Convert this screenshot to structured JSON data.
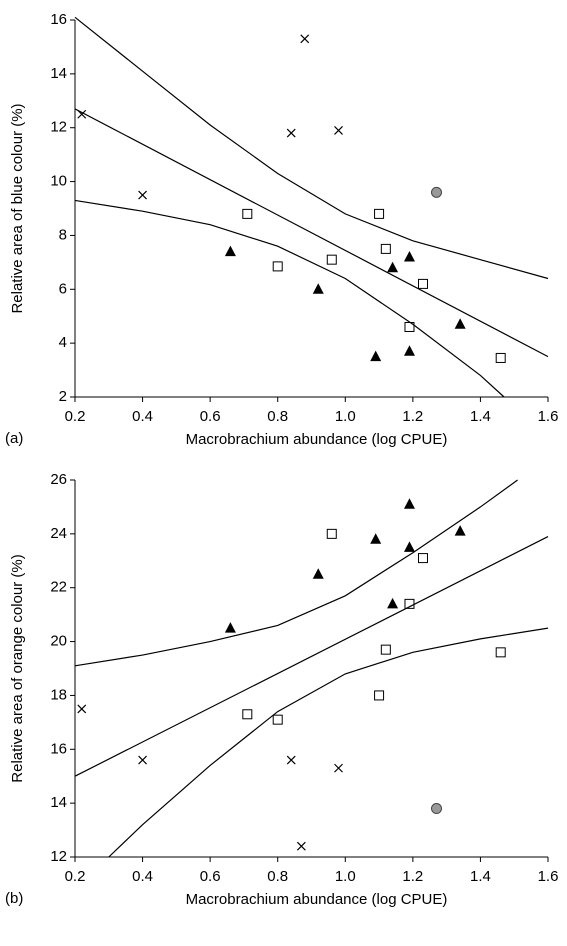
{
  "chart_data": [
    {
      "type": "scatter",
      "panel_label": "(a)",
      "x_label": "Macrobrachium abundance (log CPUE)",
      "y_label": "Relative area of blue colour (%)",
      "xlim": [
        0.2,
        1.6
      ],
      "xticks": [
        0.2,
        0.4,
        0.6,
        0.8,
        {
          "value": 1,
          "label": "1.0"
        },
        1.2,
        1.4,
        1.6
      ],
      "ylim": [
        2,
        16
      ],
      "yticks": [
        2,
        4,
        6,
        8,
        10,
        12,
        14,
        16
      ],
      "series": [
        {
          "marker": "x",
          "color": "#000000",
          "x": [
            0.22,
            0.4,
            0.84,
            0.88,
            0.98
          ],
          "values": [
            12.5,
            9.5,
            11.8,
            15.3,
            11.9
          ]
        },
        {
          "marker": "square",
          "color": "#000000",
          "x": [
            0.71,
            0.8,
            0.96,
            1.1,
            1.12,
            1.19,
            1.23,
            1.46
          ],
          "values": [
            8.8,
            6.85,
            7.1,
            8.8,
            7.5,
            4.6,
            6.2,
            3.45
          ]
        },
        {
          "marker": "triangle",
          "color": "#000000",
          "x": [
            0.66,
            0.92,
            1.09,
            1.14,
            1.19,
            1.19,
            1.34
          ],
          "values": [
            7.4,
            6.0,
            3.5,
            6.8,
            3.7,
            7.2,
            4.7
          ]
        },
        {
          "marker": "circle",
          "color": "#999999",
          "x": [
            1.27
          ],
          "values": [
            9.6
          ]
        },
        {
          "marker": "line",
          "color": "#000000",
          "x": [
            0.2,
            1.6
          ],
          "values": [
            12.7,
            3.5
          ]
        },
        {
          "marker": "line",
          "color": "#000000",
          "x": [
            0.2,
            0.4,
            0.6,
            0.8,
            1.0,
            1.2,
            1.4,
            1.6
          ],
          "values": [
            16.1,
            14.1,
            12.1,
            10.3,
            8.8,
            7.8,
            7.1,
            6.4
          ]
        },
        {
          "marker": "line",
          "color": "#000000",
          "x": [
            0.2,
            0.4,
            0.6,
            0.8,
            1.0,
            1.2,
            1.4,
            1.47
          ],
          "values": [
            9.3,
            8.9,
            8.4,
            7.6,
            6.4,
            4.7,
            2.8,
            2.0
          ]
        }
      ]
    },
    {
      "type": "scatter",
      "panel_label": "(b)",
      "x_label": "Macrobrachium abundance (log CPUE)",
      "y_label": "Relative area of orange colour (%)",
      "xlim": [
        0.2,
        1.6
      ],
      "xticks": [
        0.2,
        0.4,
        0.6,
        0.8,
        {
          "value": 1,
          "label": "1.0"
        },
        1.2,
        1.4,
        1.6
      ],
      "ylim": [
        12,
        26
      ],
      "yticks": [
        12,
        14,
        16,
        18,
        20,
        22,
        24,
        26
      ],
      "series": [
        {
          "marker": "x",
          "color": "#000000",
          "x": [
            0.22,
            0.4,
            0.84,
            0.87,
            0.98
          ],
          "values": [
            17.5,
            15.6,
            15.6,
            12.4,
            15.3
          ]
        },
        {
          "marker": "square",
          "color": "#000000",
          "x": [
            0.71,
            0.8,
            0.96,
            1.1,
            1.12,
            1.19,
            1.23,
            1.46
          ],
          "values": [
            17.3,
            17.1,
            24.0,
            18.0,
            19.7,
            21.4,
            23.1,
            19.6
          ]
        },
        {
          "marker": "triangle",
          "color": "#000000",
          "x": [
            0.66,
            0.92,
            1.09,
            1.14,
            1.19,
            1.19,
            1.34
          ],
          "values": [
            20.5,
            22.5,
            23.8,
            21.4,
            25.1,
            23.5,
            24.1
          ]
        },
        {
          "marker": "circle",
          "color": "#999999",
          "x": [
            1.27
          ],
          "values": [
            13.8
          ]
        },
        {
          "marker": "line",
          "color": "#000000",
          "x": [
            0.2,
            1.6
          ],
          "values": [
            15.0,
            23.9
          ]
        },
        {
          "marker": "line",
          "color": "#000000",
          "x": [
            0.2,
            0.4,
            0.6,
            0.8,
            1.0,
            1.2,
            1.4,
            1.51
          ],
          "values": [
            19.1,
            19.5,
            20.0,
            20.6,
            21.7,
            23.3,
            25.0,
            26.0
          ]
        },
        {
          "marker": "line",
          "color": "#000000",
          "x": [
            0.3,
            0.4,
            0.6,
            0.8,
            1.0,
            1.2,
            1.4,
            1.6
          ],
          "values": [
            12.0,
            13.2,
            15.4,
            17.4,
            18.8,
            19.6,
            20.1,
            20.5
          ]
        }
      ]
    }
  ]
}
